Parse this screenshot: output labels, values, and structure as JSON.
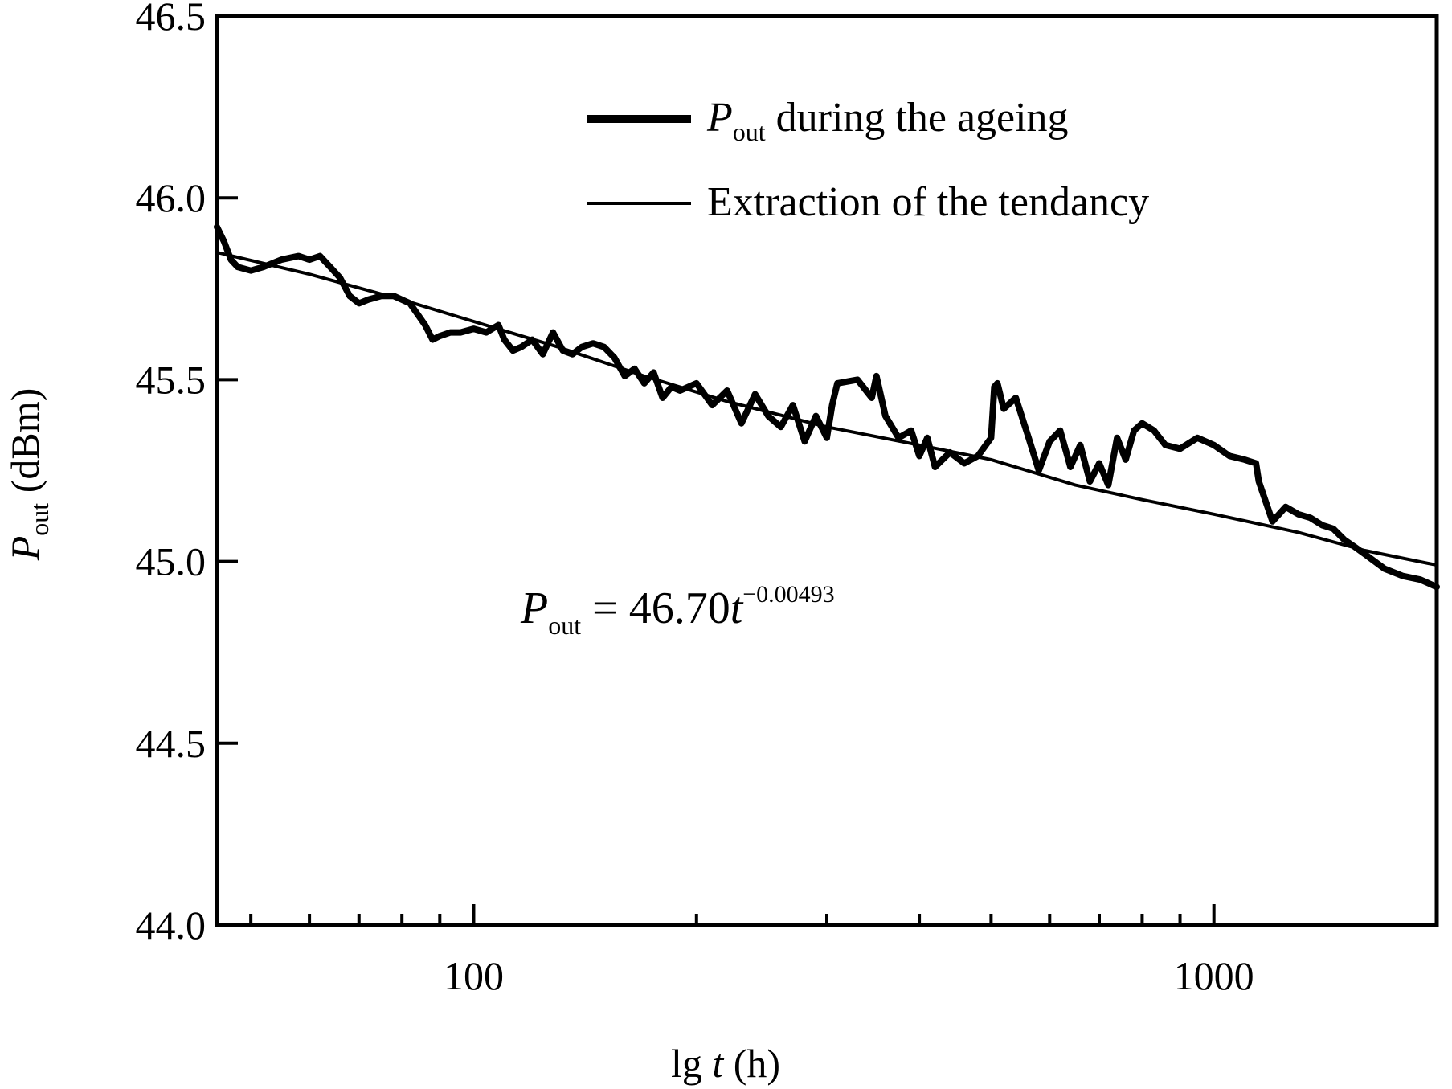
{
  "chart_data": {
    "type": "line",
    "title": "",
    "xlabel": {
      "prefix": "lg ",
      "variable": "t",
      "unit": " (h)"
    },
    "ylabel": {
      "symbol": "P",
      "subscript": "out",
      "unit": " (dBm)"
    },
    "x_scale": "log",
    "xlim": [
      45,
      2000
    ],
    "ylim": [
      44.0,
      46.5
    ],
    "y_ticks": [
      "44.0",
      "44.5",
      "45.0",
      "45.5",
      "46.0",
      "46.5"
    ],
    "x_ticks": [
      "100",
      "1000"
    ],
    "grid": false,
    "legend_position": "top-right",
    "annotation": {
      "symbol": "P",
      "subscript": "out",
      "equals": " = 46.70",
      "variable": "t",
      "exponent": "−0.00493"
    },
    "series": [
      {
        "name": {
          "symbol": "P",
          "subscript": "out",
          "rest": " during the ageing"
        },
        "style": "thick",
        "x": [
          45,
          46,
          47,
          48,
          50,
          52,
          55,
          58,
          60,
          62,
          64,
          66,
          68,
          70,
          72,
          75,
          78,
          80,
          82,
          84,
          86,
          88,
          90,
          93,
          96,
          100,
          104,
          108,
          110,
          113,
          116,
          120,
          124,
          128,
          132,
          136,
          140,
          145,
          150,
          155,
          160,
          165,
          170,
          175,
          180,
          185,
          190,
          200,
          210,
          220,
          230,
          240,
          250,
          260,
          270,
          280,
          290,
          300,
          305,
          310,
          330,
          345,
          350,
          360,
          375,
          390,
          400,
          410,
          420,
          440,
          460,
          480,
          500,
          505,
          510,
          520,
          540,
          560,
          580,
          600,
          620,
          640,
          660,
          680,
          700,
          720,
          740,
          760,
          780,
          800,
          830,
          860,
          900,
          950,
          1000,
          1050,
          1100,
          1140,
          1150,
          1200,
          1250,
          1300,
          1350,
          1400,
          1450,
          1500,
          1550,
          1600,
          1700,
          1800,
          1900,
          2000
        ],
        "y": [
          45.92,
          45.88,
          45.83,
          45.81,
          45.8,
          45.81,
          45.83,
          45.84,
          45.83,
          45.84,
          45.81,
          45.78,
          45.73,
          45.71,
          45.72,
          45.73,
          45.73,
          45.72,
          45.71,
          45.68,
          45.65,
          45.61,
          45.62,
          45.63,
          45.63,
          45.64,
          45.63,
          45.65,
          45.61,
          45.58,
          45.59,
          45.61,
          45.57,
          45.63,
          45.58,
          45.57,
          45.59,
          45.6,
          45.59,
          45.56,
          45.51,
          45.53,
          45.49,
          45.52,
          45.45,
          45.48,
          45.47,
          45.49,
          45.43,
          45.47,
          45.38,
          45.46,
          45.4,
          45.37,
          45.43,
          45.33,
          45.4,
          45.34,
          45.43,
          45.49,
          45.5,
          45.45,
          45.51,
          45.4,
          45.34,
          45.36,
          45.29,
          45.34,
          45.26,
          45.3,
          45.27,
          45.29,
          45.34,
          45.48,
          45.49,
          45.42,
          45.45,
          45.35,
          45.25,
          45.33,
          45.36,
          45.26,
          45.32,
          45.22,
          45.27,
          45.21,
          45.34,
          45.28,
          45.36,
          45.38,
          45.36,
          45.32,
          45.31,
          45.34,
          45.32,
          45.29,
          45.28,
          45.27,
          45.22,
          45.11,
          45.15,
          45.13,
          45.12,
          45.1,
          45.09,
          45.06,
          45.04,
          45.02,
          44.98,
          44.96,
          44.95,
          44.93
        ]
      },
      {
        "name": "Extraction of the tendancy",
        "style": "thin",
        "x": [
          45,
          60,
          80,
          100,
          130,
          170,
          220,
          300,
          400,
          500,
          650,
          800,
          1000,
          1300,
          1600,
          2000
        ],
        "y": [
          45.85,
          45.79,
          45.72,
          45.66,
          45.59,
          45.51,
          45.44,
          45.37,
          45.32,
          45.28,
          45.21,
          45.17,
          45.13,
          45.08,
          45.03,
          44.99
        ]
      }
    ]
  }
}
